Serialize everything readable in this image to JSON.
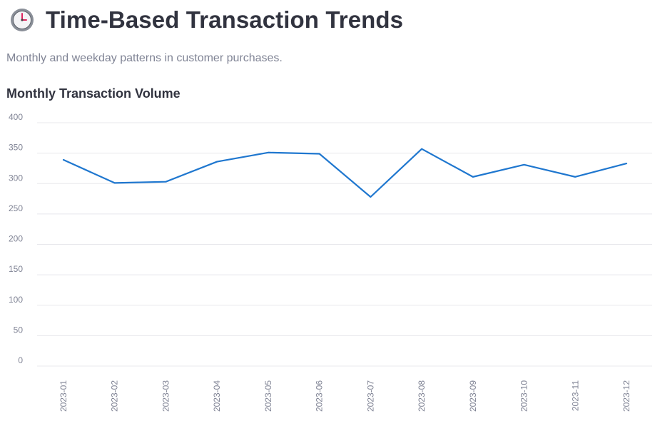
{
  "header": {
    "title": "Time-Based Transaction Trends",
    "subtitle": "Monthly and weekday patterns in customer purchases.",
    "icon": "clock-icon"
  },
  "chart_heading": "Monthly Transaction Volume",
  "colors": {
    "line": "#1f77cf",
    "grid": "#e8e8ec",
    "tick_text": "#808495"
  },
  "chart_data": {
    "type": "line",
    "title": "Monthly Transaction Volume",
    "xlabel": "",
    "ylabel": "",
    "x": [
      "2023-01",
      "2023-02",
      "2023-03",
      "2023-04",
      "2023-05",
      "2023-06",
      "2023-07",
      "2023-08",
      "2023-09",
      "2023-10",
      "2023-11",
      "2023-12"
    ],
    "series": [
      {
        "values": [
          339,
          301,
          303,
          336,
          351,
          349,
          278,
          357,
          311,
          331,
          311,
          333
        ]
      }
    ],
    "ylim": [
      0,
      400
    ],
    "yticks": [
      0,
      50,
      100,
      150,
      200,
      250,
      300,
      350,
      400
    ],
    "grid": true
  }
}
